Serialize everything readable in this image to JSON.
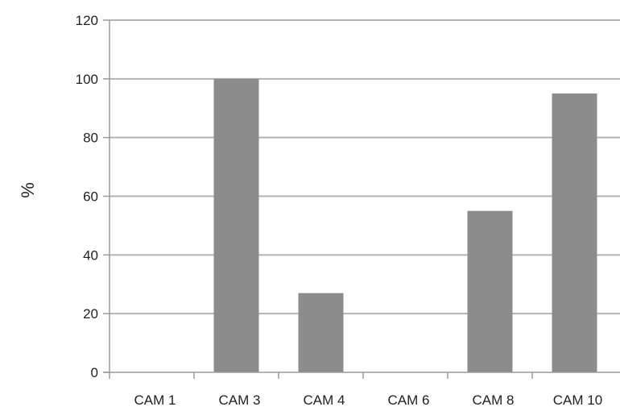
{
  "chart_data": {
    "type": "bar",
    "title": "",
    "xlabel": "",
    "ylabel": "%",
    "categories": [
      "CAM 1",
      "CAM 3",
      "CAM 4",
      "CAM 6",
      "CAM 8",
      "CAM 10"
    ],
    "values": [
      0,
      100,
      27,
      0,
      55,
      95
    ],
    "ylim": [
      0,
      120
    ],
    "yticks": [
      0,
      20,
      40,
      60,
      80,
      100,
      120
    ],
    "grid": true,
    "legend": "none",
    "colors": {
      "bar": "#8c8c8c",
      "grid": "#b3b3b3",
      "axis": "#9a9a9a"
    }
  }
}
